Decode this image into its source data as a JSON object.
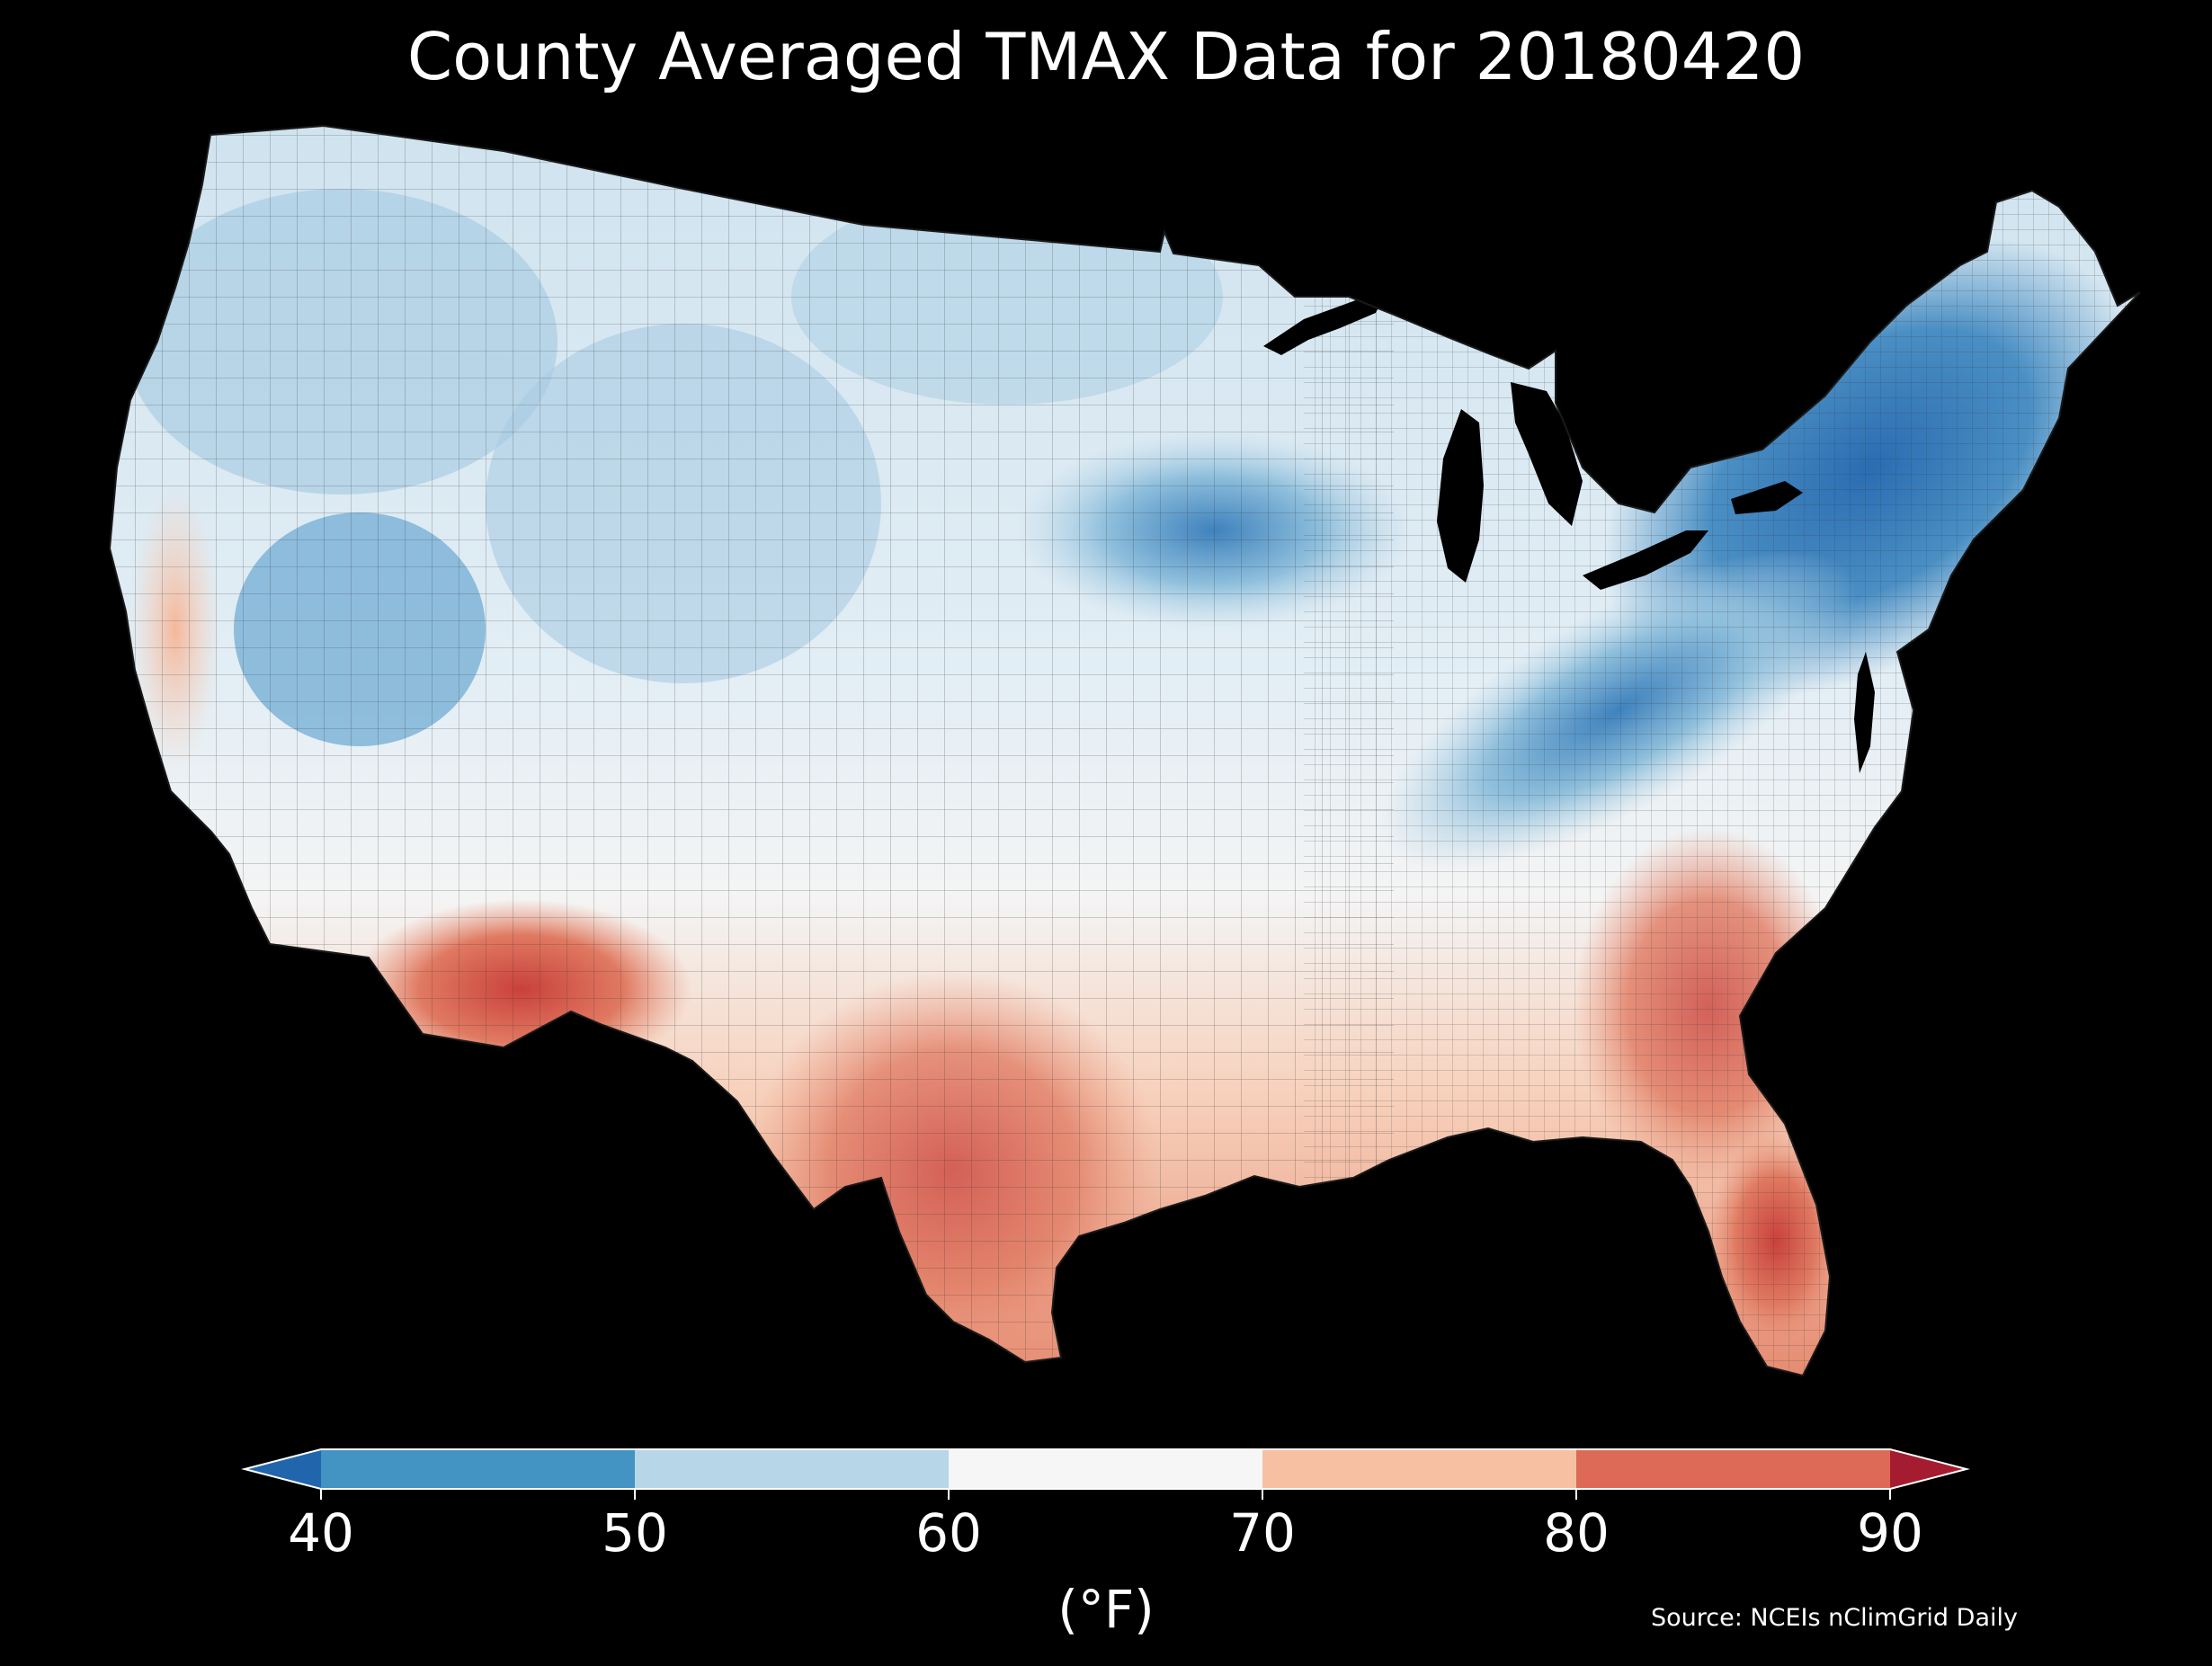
{
  "title": "County Averaged TMAX Data for 20180420",
  "map": {
    "region": "Contiguous United States",
    "unit_level": "county",
    "variable": "TMAX",
    "date": "20180420",
    "regional_pattern": [
      {
        "region": "Northeast / New England",
        "class": "40-50"
      },
      {
        "region": "Upper Midwest (South Dakota / Minnesota / Iowa)",
        "class": "40-50"
      },
      {
        "region": "Great Basin (Nevada / Utah)",
        "class": "40-50"
      },
      {
        "region": "Northern Plains / Northwest",
        "class": "50-60"
      },
      {
        "region": "Ohio Valley / Appalachians",
        "class": "50-60"
      },
      {
        "region": "Central Plains / Midwest",
        "class": "60-70"
      },
      {
        "region": "California Central Valley",
        "class": "70-80"
      },
      {
        "region": "Texas",
        "class": "70-80"
      },
      {
        "region": "Carolinas / Georgia",
        "class": "70-80"
      },
      {
        "region": "Arizona desert",
        "class": "80-90"
      },
      {
        "region": "Florida peninsula",
        "class": "80-90"
      }
    ]
  },
  "colorbar": {
    "ticks": [
      "40",
      "50",
      "60",
      "70",
      "80",
      "90"
    ],
    "bins": [
      {
        "range": "<40",
        "color": "#2166ac"
      },
      {
        "range": "40-50",
        "color": "#4393c3"
      },
      {
        "range": "50-60",
        "color": "#b7d6e8"
      },
      {
        "range": "60-70",
        "color": "#f6f6f6"
      },
      {
        "range": "70-80",
        "color": "#f7c0a3"
      },
      {
        "range": "80-90",
        "color": "#dd6a56"
      },
      {
        "range": ">90",
        "color": "#a51c30"
      }
    ],
    "units": "(°F)",
    "extend": "both"
  },
  "source": "Source: NCEIs nClimGrid Daily",
  "colors": {
    "background": "#000000",
    "text": "#ffffff",
    "county_borders": "#333333"
  }
}
